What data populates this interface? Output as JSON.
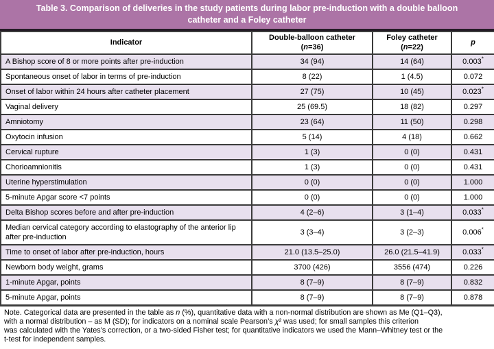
{
  "banner": {
    "title": "Table 3. Comparison of deliveries in the study patients during labor pre-induction with a double balloon catheter and a Foley catheter"
  },
  "table": {
    "columns": {
      "indicator": "Indicator",
      "dbc_line1": "Double-balloon catheter",
      "dbc_line2": "(n=36)",
      "foley_line1": "Foley catheter",
      "foley_line2": "(n=22)",
      "p": "p"
    },
    "rows": [
      {
        "indicator": "A Bishop score of 8 or more points after pre-induction",
        "dbc": "34 (94)",
        "foley": "14 (64)",
        "p": "0.003*"
      },
      {
        "indicator": "Spontaneous onset of labor in terms of pre-induction",
        "dbc": "8 (22)",
        "foley": "1 (4.5)",
        "p": "0.072"
      },
      {
        "indicator": "Onset of labor within 24 hours after catheter placement",
        "dbc": "27 (75)",
        "foley": "10 (45)",
        "p": "0.023*"
      },
      {
        "indicator": "Vaginal delivery",
        "dbc": "25 (69.5)",
        "foley": "18 (82)",
        "p": "0.297"
      },
      {
        "indicator": "Amniotomy",
        "dbc": "23 (64)",
        "foley": "11 (50)",
        "p": "0.298"
      },
      {
        "indicator": "Oxytocin infusion",
        "dbc": "5 (14)",
        "foley": "4 (18)",
        "p": "0.662"
      },
      {
        "indicator": "Cervical rupture",
        "dbc": "1 (3)",
        "foley": "0 (0)",
        "p": "0.431"
      },
      {
        "indicator": "Chorioamnionitis",
        "dbc": "1 (3)",
        "foley": "0 (0)",
        "p": "0.431"
      },
      {
        "indicator": "Uterine hyperstimulation",
        "dbc": "0 (0)",
        "foley": "0 (0)",
        "p": "1.000"
      },
      {
        "indicator": "5-minute Apgar score <7 points",
        "dbc": "0 (0)",
        "foley": "0 (0)",
        "p": "1.000"
      },
      {
        "indicator": "Delta Bishop scores before and after pre-induction",
        "dbc": "4 (2–6)",
        "foley": "3 (1–4)",
        "p": "0.033*"
      },
      {
        "indicator": "Median cervical category according to elastography of the anterior lip after pre-induction",
        "dbc": "3 (3–4)",
        "foley": "3 (2–3)",
        "p": "0.006*"
      },
      {
        "indicator": "Time to onset of labor after pre-induction, hours",
        "dbc": "21.0 (13.5–25.0)",
        "foley": "26.0 (21.5–41.9)",
        "p": "0.033*"
      },
      {
        "indicator": "Newborn body weight, grams",
        "dbc": "3700 (426)",
        "foley": "3556 (474)",
        "p": "0.226"
      },
      {
        "indicator": "1-minute Apgar, points",
        "dbc": "8 (7–9)",
        "foley": "8 (7–9)",
        "p": "0.832"
      },
      {
        "indicator": "5-minute Apgar, points",
        "dbc": "8 (7–9)",
        "foley": "8 (7–9)",
        "p": "0.878"
      }
    ]
  },
  "note": {
    "lines": [
      "Note. Categorical data are presented in the table as n (%), quantitative data with a non-normal distribution are shown as Me (Q1–Q3),",
      "with a normal distribution – as M (SD); for indicators on a nominal scale Pearson’s χ² was used; for small samples this criterion",
      "was calculated with the Yates’s correction, or a two-sided Fisher test; for quantitative indicators we used the Mann–Whitney test or the",
      "t-test for independent samples."
    ]
  },
  "colors": {
    "banner_bg": "#ac74a6",
    "stripe_bg": "#e8e0ee",
    "border": "#3b3b3b",
    "title_text": "#ffffff"
  }
}
